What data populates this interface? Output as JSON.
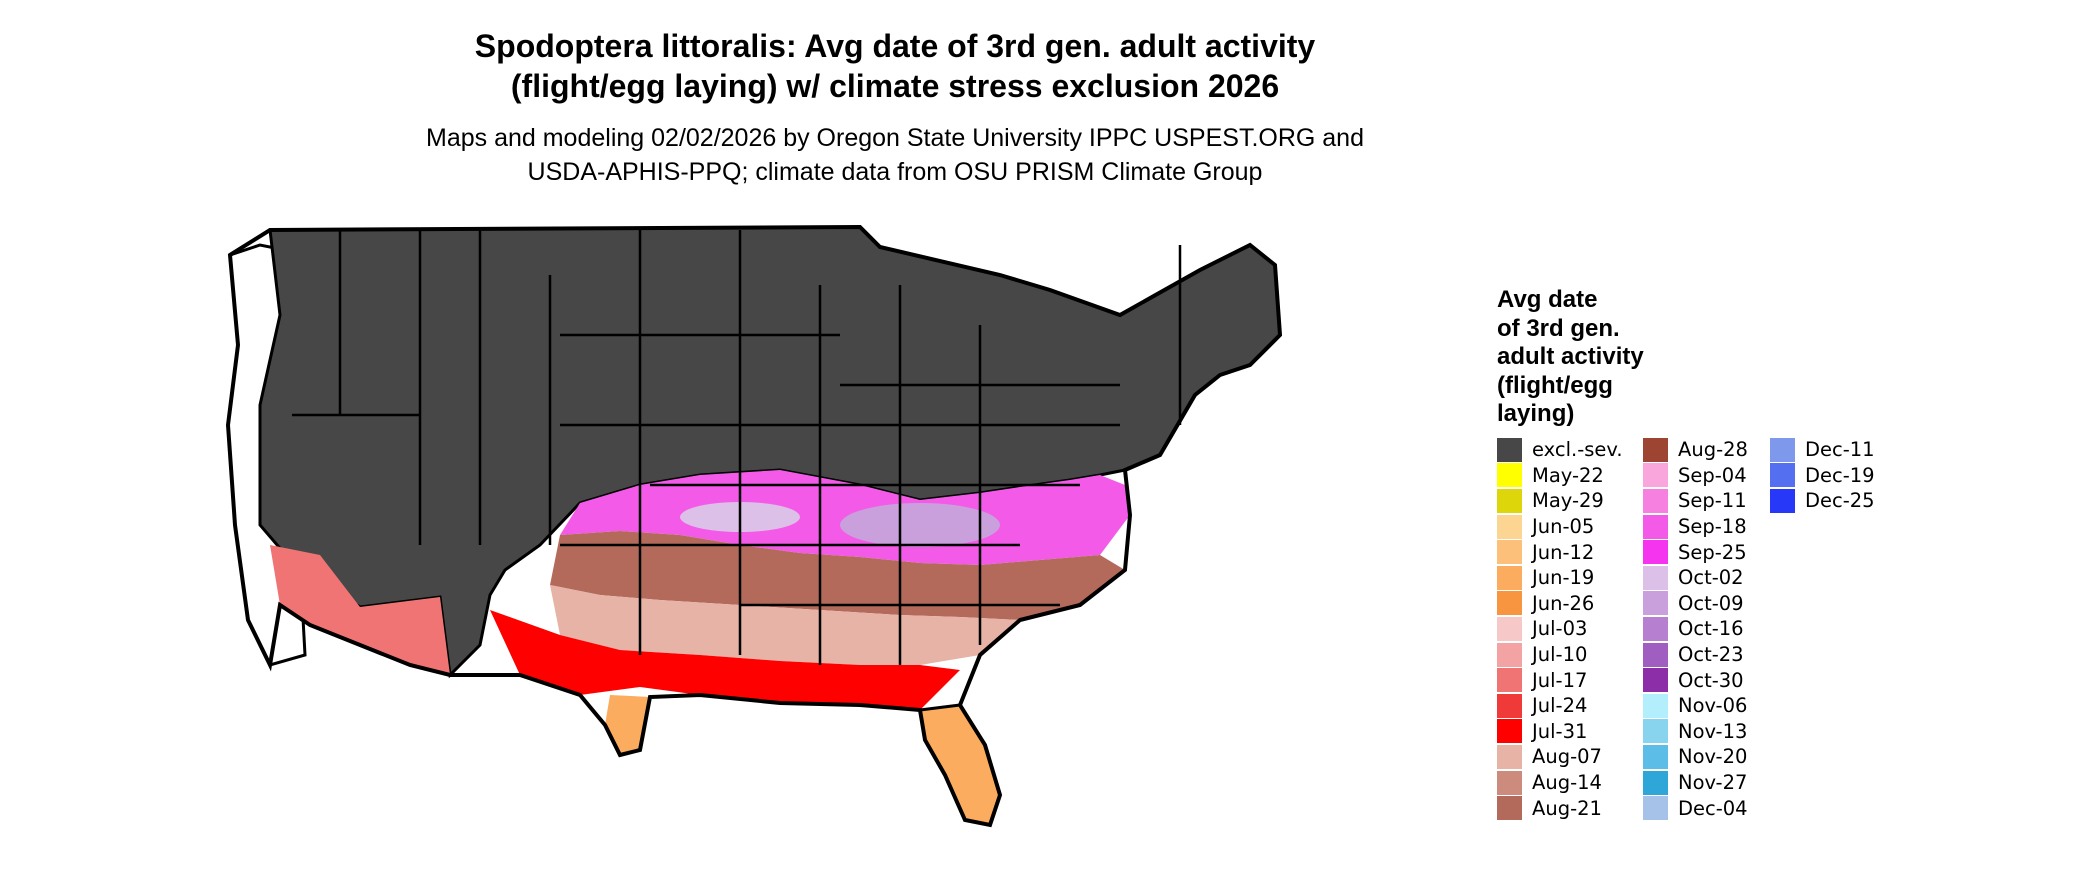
{
  "title_line1": "Spodoptera littoralis: Avg date of 3rd gen. adult activity",
  "title_line2": "(flight/egg laying) w/ climate stress exclusion 2026",
  "subtitle_line1": "Maps and modeling 02/02/2026 by Oregon State University IPPC USPEST.ORG and",
  "subtitle_line2": "USDA-APHIS-PPQ; climate data from OSU PRISM Climate Group",
  "legend": {
    "title_lines": [
      "Avg date",
      "of 3rd gen.",
      "adult activity",
      "(flight/egg",
      "laying)"
    ],
    "col1": [
      {
        "label": "excl.-sev.",
        "color": "#474747"
      },
      {
        "label": "May-22",
        "color": "#ffff00"
      },
      {
        "label": "May-29",
        "color": "#dcd60a"
      },
      {
        "label": "Jun-05",
        "color": "#fdd592"
      },
      {
        "label": "Jun-12",
        "color": "#fcc07a"
      },
      {
        "label": "Jun-19",
        "color": "#fbac5f"
      },
      {
        "label": "Jun-26",
        "color": "#f89540"
      },
      {
        "label": "Jul-03",
        "color": "#f6c8c8"
      },
      {
        "label": "Jul-10",
        "color": "#f3a3a3"
      },
      {
        "label": "Jul-17",
        "color": "#f07474"
      },
      {
        "label": "Jul-24",
        "color": "#f03a3a"
      },
      {
        "label": "Jul-31",
        "color": "#ff0000"
      },
      {
        "label": "Aug-07",
        "color": "#e6b3a6"
      },
      {
        "label": "Aug-14",
        "color": "#cc8b7c"
      },
      {
        "label": "Aug-21",
        "color": "#b36a5a"
      }
    ],
    "col2": [
      {
        "label": "Aug-28",
        "color": "#9e4433"
      },
      {
        "label": "Sep-04",
        "color": "#f8a6dc"
      },
      {
        "label": "Sep-11",
        "color": "#f680e0"
      },
      {
        "label": "Sep-18",
        "color": "#f45ae8"
      },
      {
        "label": "Sep-25",
        "color": "#f534f0"
      },
      {
        "label": "Oct-02",
        "color": "#dcc0e8"
      },
      {
        "label": "Oct-09",
        "color": "#c9a0dc"
      },
      {
        "label": "Oct-16",
        "color": "#b67fd0"
      },
      {
        "label": "Oct-23",
        "color": "#a05ec0"
      },
      {
        "label": "Oct-30",
        "color": "#8c2ea8"
      },
      {
        "label": "Nov-06",
        "color": "#b3eefc"
      },
      {
        "label": "Nov-13",
        "color": "#88d4ee"
      },
      {
        "label": "Nov-20",
        "color": "#5cbde6"
      },
      {
        "label": "Nov-27",
        "color": "#2ea6d8"
      },
      {
        "label": "Dec-04",
        "color": "#a6c2e8"
      }
    ],
    "col3": [
      {
        "label": "Dec-11",
        "color": "#7e98ec"
      },
      {
        "label": "Dec-19",
        "color": "#5470f0"
      },
      {
        "label": "Dec-25",
        "color": "#2838f8"
      }
    ]
  }
}
